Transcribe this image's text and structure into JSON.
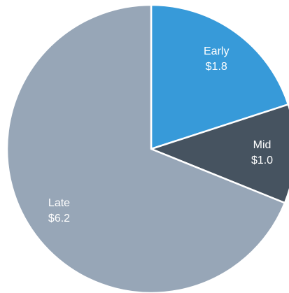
{
  "chart_data": {
    "type": "pie",
    "categories": [
      "Early",
      "Mid",
      "Late"
    ],
    "values": [
      1.8,
      1.0,
      6.2
    ],
    "value_labels": [
      "$1.8",
      "$1.0",
      "$6.2"
    ],
    "colors": [
      "#379ad9",
      "#465360",
      "#97a6b7"
    ]
  }
}
